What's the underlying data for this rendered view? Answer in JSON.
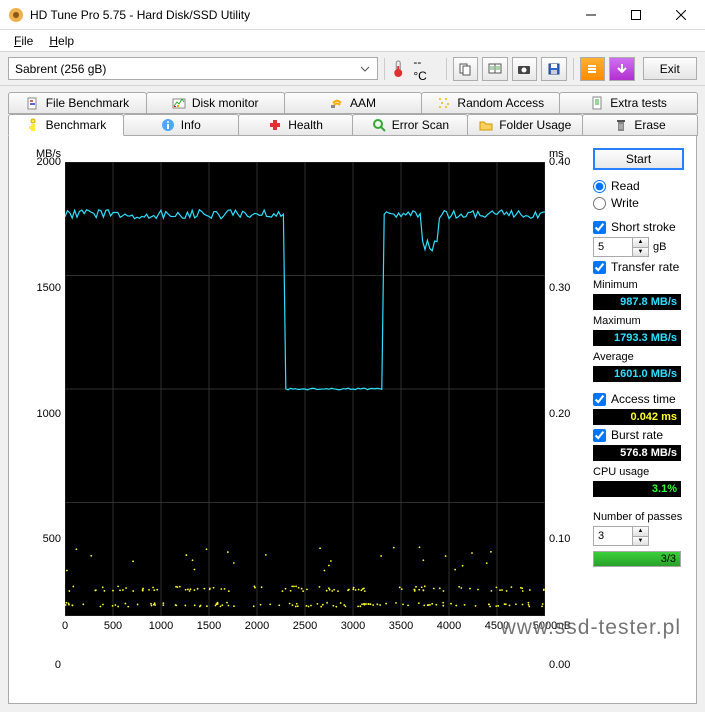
{
  "window": {
    "title": "HD Tune Pro 5.75 - Hard Disk/SSD Utility"
  },
  "menu": {
    "file": "File",
    "help": "Help"
  },
  "toolbar": {
    "drive": "Sabrent (256 gB)",
    "temp": "-- °C",
    "exit": "Exit"
  },
  "tabs_top": [
    {
      "label": "File Benchmark",
      "icon": "filebench"
    },
    {
      "label": "Disk monitor",
      "icon": "diskmon"
    },
    {
      "label": "AAM",
      "icon": "aam"
    },
    {
      "label": "Random Access",
      "icon": "random"
    },
    {
      "label": "Extra tests",
      "icon": "extra"
    }
  ],
  "tabs_bottom": [
    {
      "label": "Benchmark",
      "icon": "bench"
    },
    {
      "label": "Info",
      "icon": "info"
    },
    {
      "label": "Health",
      "icon": "health"
    },
    {
      "label": "Error Scan",
      "icon": "errorscan"
    },
    {
      "label": "Folder Usage",
      "icon": "folder"
    },
    {
      "label": "Erase",
      "icon": "erase"
    }
  ],
  "chart": {
    "y_left_unit": "MB/s",
    "y_right_unit": "ms",
    "y_left_ticks": [
      0,
      500,
      1000,
      1500,
      2000
    ],
    "y_right_ticks": [
      "0.00",
      "0.10",
      "0.20",
      "0.30",
      "0.40"
    ],
    "x_ticks": [
      0,
      500,
      1000,
      1500,
      2000,
      2500,
      3000,
      3500,
      4000,
      4500,
      5000
    ],
    "x_unit": "mB",
    "x_max": 5000,
    "y_left_max": 2000,
    "line_color": "#2de0ff",
    "scatter_color": "#ffff30",
    "grid_color": "#303030",
    "bg_color": "#000000",
    "transfer_line": {
      "base_high": 1770,
      "base_low": 1000,
      "drop_start_x": 2300,
      "drop_end_x": 3300,
      "notch_x": 3800,
      "notch_y": 1620
    },
    "access_scatter_bands": [
      {
        "y": 50,
        "spread": 18
      },
      {
        "y": 120,
        "spread": 22
      }
    ],
    "access_high_points_y": 260,
    "access_scatter_count": 200
  },
  "side": {
    "start": "Start",
    "read": "Read",
    "write": "Write",
    "short_stroke": "Short stroke",
    "short_stroke_val": "5",
    "short_stroke_unit": "gB",
    "transfer_rate": "Transfer rate",
    "minimum": "Minimum",
    "minimum_val": "987.8 MB/s",
    "maximum": "Maximum",
    "maximum_val": "1793.3 MB/s",
    "average": "Average",
    "average_val": "1601.0 MB/s",
    "access_time": "Access time",
    "access_time_val": "0.042 ms",
    "burst_rate": "Burst rate",
    "burst_rate_val": "576.8 MB/s",
    "cpu_usage": "CPU usage",
    "cpu_usage_val": "3.1%",
    "passes": "Number of passes",
    "passes_val": "3",
    "passes_txt": "3/3",
    "progress_pct": 100
  },
  "watermark": "www.ssd-tester.pl"
}
